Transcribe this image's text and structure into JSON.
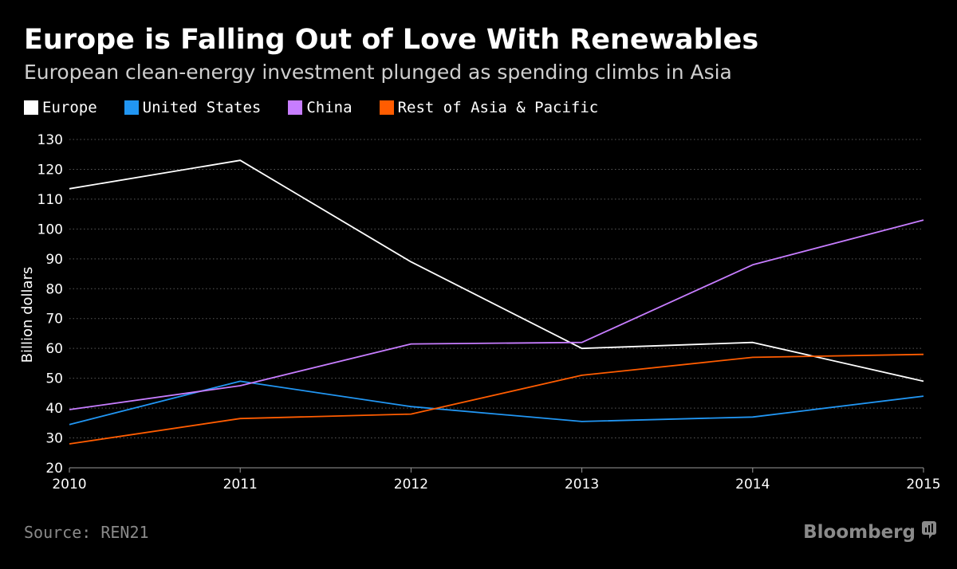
{
  "header": {
    "title": "Europe is Falling Out of Love With Renewables",
    "subtitle": "European clean-energy investment plunged as spending climbs in Asia"
  },
  "footer": {
    "source": "Source: REN21",
    "brand": "Bloomberg",
    "brand_icon": "bloomberg-terminal-icon"
  },
  "colors": {
    "background": "#000000",
    "grid": "#5a5a5a",
    "axis": "#9a9a9a"
  },
  "chart_data": {
    "type": "line",
    "title": "Europe is Falling Out of Love With Renewables",
    "subtitle": "European clean-energy investment plunged as spending climbs in Asia",
    "xlabel": "",
    "ylabel": "Billion dollars",
    "x": [
      2010,
      2011,
      2012,
      2013,
      2014,
      2015
    ],
    "x_tick_labels": [
      "2010",
      "2011",
      "2012",
      "2013",
      "2014",
      "2015"
    ],
    "xlim": [
      2010,
      2015
    ],
    "ylim": [
      20,
      130
    ],
    "y_ticks": [
      20,
      30,
      40,
      50,
      60,
      70,
      80,
      90,
      100,
      110,
      120,
      130
    ],
    "y_tick_labels": [
      "20",
      "30",
      "40",
      "50",
      "60",
      "70",
      "80",
      "90",
      "100",
      "110",
      "120",
      "130"
    ],
    "grid": "horizontal dotted",
    "legend_position": "top-left",
    "series": [
      {
        "name": "Europe",
        "color": "#ffffff",
        "values": [
          113.5,
          123,
          89,
          60,
          62,
          49
        ]
      },
      {
        "name": "United States",
        "color": "#2196f3",
        "values": [
          34.5,
          49,
          40.5,
          35.5,
          37,
          44
        ]
      },
      {
        "name": "China",
        "color": "#c77dff",
        "values": [
          39.5,
          47.5,
          61.5,
          62,
          88,
          103
        ]
      },
      {
        "name": "Rest of Asia & Pacific",
        "color": "#ff5c00",
        "values": [
          28,
          36.5,
          38,
          51,
          57,
          58
        ]
      }
    ]
  }
}
